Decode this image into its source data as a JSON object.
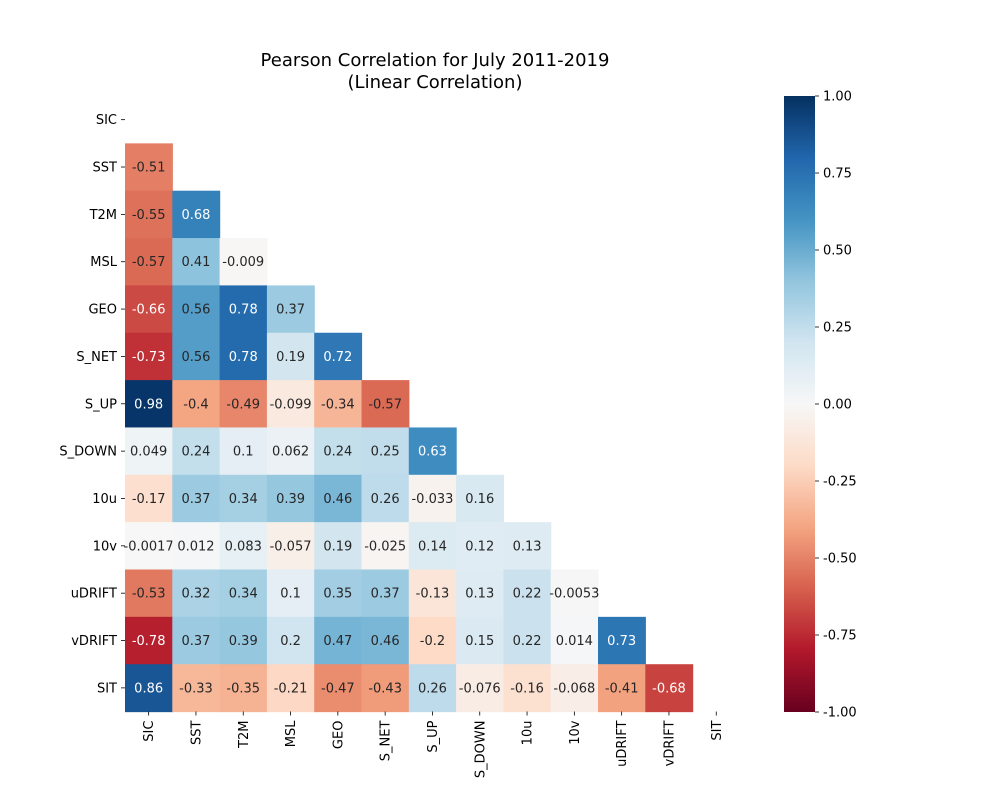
{
  "chart_data": {
    "type": "heatmap",
    "title_lines": [
      "Pearson Correlation for July 2011-2019",
      "(Linear Correlation)"
    ],
    "xlabel": "",
    "ylabel": "",
    "variables": [
      "SIC",
      "SST",
      "T2M",
      "MSL",
      "GEO",
      "S_NET",
      "S_UP",
      "S_DOWN",
      "10u",
      "10v",
      "uDRIFT",
      "vDRIFT",
      "SIT"
    ],
    "lower_triangle_labels": [
      [],
      [
        "-0.51"
      ],
      [
        "-0.55",
        "0.68"
      ],
      [
        "-0.57",
        "0.41",
        "-0.009"
      ],
      [
        "-0.66",
        "0.56",
        "0.78",
        "0.37"
      ],
      [
        "-0.73",
        "0.56",
        "0.78",
        "0.19",
        "0.72"
      ],
      [
        "0.98",
        "-0.4",
        "-0.49",
        "-0.099",
        "-0.34",
        "-0.57"
      ],
      [
        "0.049",
        "0.24",
        "0.1",
        "0.062",
        "0.24",
        "0.25",
        "0.63"
      ],
      [
        "-0.17",
        "0.37",
        "0.34",
        "0.39",
        "0.46",
        "0.26",
        "-0.033",
        "0.16"
      ],
      [
        "-0.0017",
        "0.012",
        "0.083",
        "-0.057",
        "0.19",
        "-0.025",
        "0.14",
        "0.12",
        "0.13"
      ],
      [
        "-0.53",
        "0.32",
        "0.34",
        "0.1",
        "0.35",
        "0.37",
        "-0.13",
        "0.13",
        "0.22",
        "-0.0053"
      ],
      [
        "-0.78",
        "0.37",
        "0.39",
        "0.2",
        "0.47",
        "0.46",
        "-0.2",
        "0.15",
        "0.22",
        "0.014",
        "0.73"
      ],
      [
        "0.86",
        "-0.33",
        "-0.35",
        "-0.21",
        "-0.47",
        "-0.43",
        "0.26",
        "-0.076",
        "-0.16",
        "-0.068",
        "-0.41",
        "-0.68"
      ]
    ],
    "mask": "upper-triangle-and-diagonal",
    "colormap": "RdBu",
    "vmin": -1.0,
    "vmax": 1.0,
    "colorbar_ticks": [
      "1.00",
      "0.75",
      "0.50",
      "0.25",
      "0.00",
      "-0.25",
      "-0.50",
      "-0.75",
      "-1.00"
    ],
    "grid": false
  }
}
